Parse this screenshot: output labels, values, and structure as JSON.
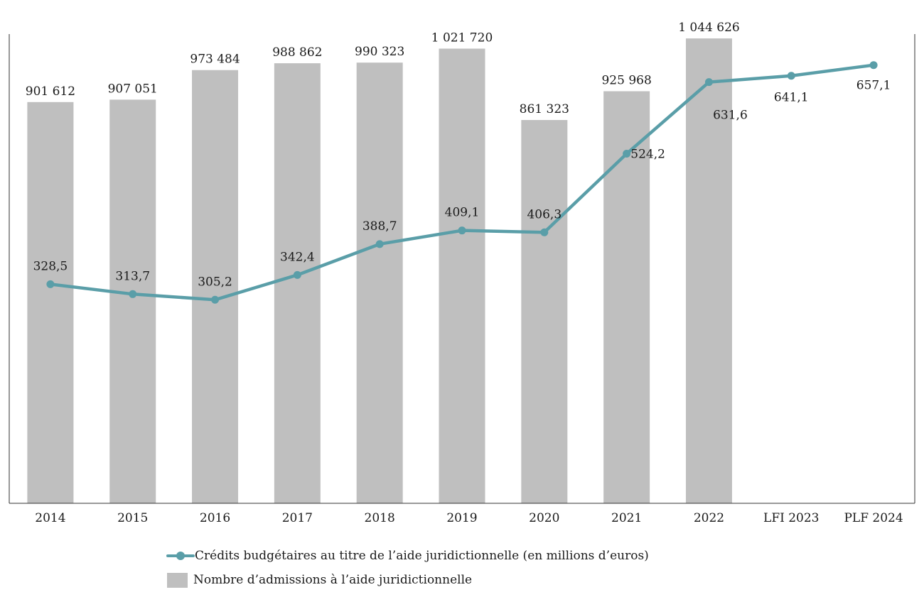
{
  "chart_data": {
    "type": "bar+line",
    "categories": [
      "2014",
      "2015",
      "2016",
      "2017",
      "2018",
      "2019",
      "2020",
      "2021",
      "2022",
      "LFI 2023",
      "PLF 2024"
    ],
    "series": [
      {
        "name": "Nombre d’admissions à l’aide juridictionnelle",
        "kind": "bar",
        "color": "#bfbfbf",
        "values": [
          901612,
          907051,
          973484,
          988862,
          990323,
          1021720,
          861323,
          925968,
          1044626,
          null,
          null
        ],
        "labels": [
          "901 612",
          "907 051",
          "973 484",
          "988 862",
          "990 323",
          "1 021 720",
          "861 323",
          "925 968",
          "1 044 626",
          "",
          ""
        ]
      },
      {
        "name": "Crédits budgétaires au titre de l’aide juridictionnelle (en millions d’euros)",
        "kind": "line",
        "color": "#5a9ea8",
        "values": [
          328.5,
          313.7,
          305.2,
          342.4,
          388.7,
          409.1,
          406.3,
          524.2,
          631.6,
          641.1,
          657.1
        ],
        "labels": [
          "328,5",
          "313,7",
          "305,2",
          "342,4",
          "388,7",
          "409,1",
          "406,3",
          "524,2",
          "631,6",
          "641,1",
          "657,1"
        ]
      }
    ],
    "bar_ylim": [
      0,
      1064000
    ],
    "line_ylim": [
      0,
      710
    ],
    "grid": false,
    "legend_position": "bottom"
  },
  "legend": {
    "line_label": "Crédits budgétaires au titre de l’aide juridictionnelle (en millions d’euros)",
    "bar_label": "Nombre d’admissions à l’aide juridictionnelle"
  }
}
